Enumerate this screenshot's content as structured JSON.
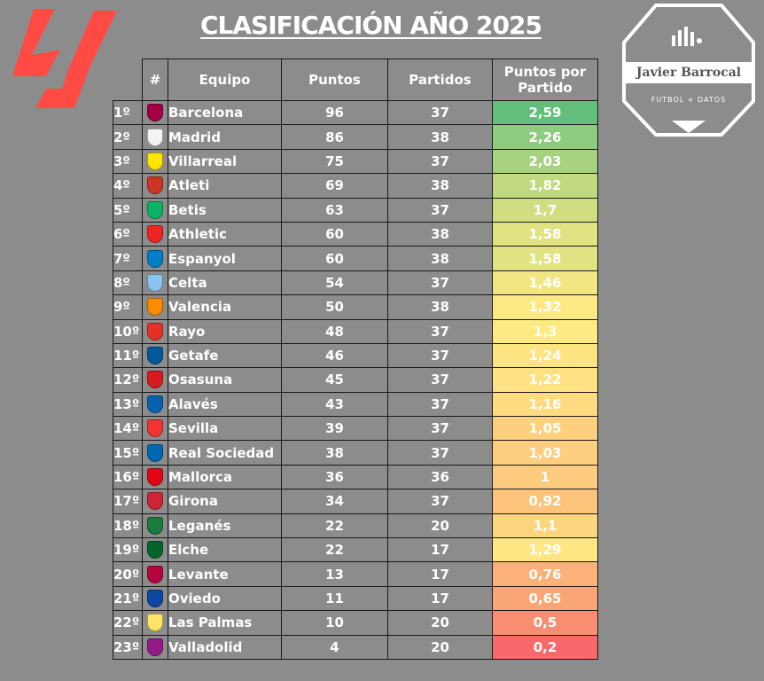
{
  "title": "CLASIFICACIÓN AÑO 2025",
  "brand": {
    "name": "Javier Barrocal",
    "tagline": "FUTBOL + DATOS"
  },
  "headers": {
    "rank": "#",
    "team": "Equipo",
    "points": "Puntos",
    "played": "Partidos",
    "ppg": "Puntos por Partido"
  },
  "rows": [
    {
      "pos": "1º",
      "team": "Barcelona",
      "points": "96",
      "played": "37",
      "ppg": "2,59",
      "color": "#63be7b",
      "crest": "barcelona-crest-icon",
      "crest_color": "#a50044"
    },
    {
      "pos": "2º",
      "team": "Madrid",
      "points": "86",
      "played": "38",
      "ppg": "2,26",
      "color": "#8ecb7e",
      "crest": "real-madrid-crest-icon",
      "crest_color": "#f4f4f4"
    },
    {
      "pos": "3º",
      "team": "Villarreal",
      "points": "75",
      "played": "37",
      "ppg": "2,03",
      "color": "#a7d27f",
      "crest": "villarreal-crest-icon",
      "crest_color": "#ffe500"
    },
    {
      "pos": "4º",
      "team": "Atleti",
      "points": "69",
      "played": "38",
      "ppg": "1,82",
      "color": "#c1da80",
      "crest": "atletico-crest-icon",
      "crest_color": "#cb3524"
    },
    {
      "pos": "5º",
      "team": "Betis",
      "points": "63",
      "played": "37",
      "ppg": "1,7",
      "color": "#d0de81",
      "crest": "betis-crest-icon",
      "crest_color": "#0bb363"
    },
    {
      "pos": "6º",
      "team": "Athletic",
      "points": "60",
      "played": "38",
      "ppg": "1,58",
      "color": "#e1e282",
      "crest": "athletic-crest-icon",
      "crest_color": "#ee2523"
    },
    {
      "pos": "7º",
      "team": "Espanyol",
      "points": "60",
      "played": "38",
      "ppg": "1,58",
      "color": "#e1e282",
      "crest": "espanyol-crest-icon",
      "crest_color": "#007fc8"
    },
    {
      "pos": "8º",
      "team": "Celta",
      "points": "54",
      "played": "37",
      "ppg": "1,46",
      "color": "#f1e683",
      "crest": "celta-crest-icon",
      "crest_color": "#8ac3ee"
    },
    {
      "pos": "9º",
      "team": "Valencia",
      "points": "50",
      "played": "38",
      "ppg": "1,32",
      "color": "#fde983",
      "crest": "valencia-crest-icon",
      "crest_color": "#ff8c00"
    },
    {
      "pos": "10º",
      "team": "Rayo",
      "points": "48",
      "played": "37",
      "ppg": "1,3",
      "color": "#fee983",
      "crest": "rayo-crest-icon",
      "crest_color": "#e53027"
    },
    {
      "pos": "11º",
      "team": "Getafe",
      "points": "46",
      "played": "37",
      "ppg": "1,24",
      "color": "#fee382",
      "crest": "getafe-crest-icon",
      "crest_color": "#005999"
    },
    {
      "pos": "12º",
      "team": "Osasuna",
      "points": "45",
      "played": "37",
      "ppg": "1,22",
      "color": "#fee182",
      "crest": "osasuna-crest-icon",
      "crest_color": "#d91a21"
    },
    {
      "pos": "13º",
      "team": "Alavés",
      "points": "43",
      "played": "37",
      "ppg": "1,16",
      "color": "#fedb81",
      "crest": "alaves-crest-icon",
      "crest_color": "#0761af"
    },
    {
      "pos": "14º",
      "team": "Sevilla",
      "points": "39",
      "played": "37",
      "ppg": "1,05",
      "color": "#fdd07e",
      "crest": "sevilla-crest-icon",
      "crest_color": "#f43333"
    },
    {
      "pos": "15º",
      "team": "Real Sociedad",
      "points": "38",
      "played": "37",
      "ppg": "1,03",
      "color": "#fdce7e",
      "crest": "real-sociedad-crest-icon",
      "crest_color": "#0067b1"
    },
    {
      "pos": "16º",
      "team": "Mallorca",
      "points": "36",
      "played": "36",
      "ppg": "1",
      "color": "#fdcb7d",
      "crest": "mallorca-crest-icon",
      "crest_color": "#e20613"
    },
    {
      "pos": "17º",
      "team": "Girona",
      "points": "34",
      "played": "37",
      "ppg": "0,92",
      "color": "#fcc37b",
      "crest": "girona-crest-icon",
      "crest_color": "#cd2534"
    },
    {
      "pos": "18º",
      "team": "Leganés",
      "points": "22",
      "played": "20",
      "ppg": "1,1",
      "color": "#fed57f",
      "crest": "leganes-crest-icon",
      "crest_color": "#1b7a3e"
    },
    {
      "pos": "19º",
      "team": "Elche",
      "points": "22",
      "played": "17",
      "ppg": "1,29",
      "color": "#fee683",
      "crest": "elche-crest-icon",
      "crest_color": "#05642c"
    },
    {
      "pos": "20º",
      "team": "Levante",
      "points": "13",
      "played": "17",
      "ppg": "0,76",
      "color": "#fbb178",
      "crest": "levante-crest-icon",
      "crest_color": "#b4053f"
    },
    {
      "pos": "21º",
      "team": "Oviedo",
      "points": "11",
      "played": "17",
      "ppg": "0,65",
      "color": "#faa575",
      "crest": "oviedo-crest-icon",
      "crest_color": "#0d47a1"
    },
    {
      "pos": "22º",
      "team": "Las Palmas",
      "points": "10",
      "played": "20",
      "ppg": "0,5",
      "color": "#f98d72",
      "crest": "las-palmas-crest-icon",
      "crest_color": "#ffe667"
    },
    {
      "pos": "23º",
      "team": "Valladolid",
      "points": "4",
      "played": "20",
      "ppg": "0,2",
      "color": "#f8696b",
      "crest": "valladolid-crest-icon",
      "crest_color": "#921b88"
    }
  ]
}
